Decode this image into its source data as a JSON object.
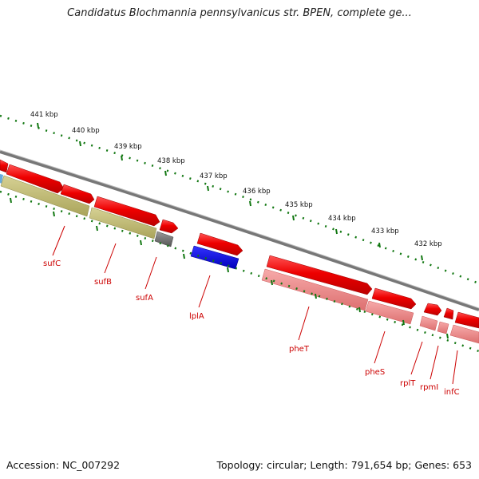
{
  "title": "Candidatus Blochmannia pennsylvanicus str. BPEN, complete ge...",
  "footer": {
    "accession": "Accession: NC_007292",
    "stats": "Topology: circular; Length: 791,654 bp; Genes: 653"
  },
  "scale": {
    "unit": "kbp",
    "ticks": [
      {
        "kbp": 441,
        "label": "441 kbp"
      },
      {
        "kbp": 440,
        "label": "440 kbp"
      },
      {
        "kbp": 439,
        "label": "439 kbp"
      },
      {
        "kbp": 438,
        "label": "438 kbp"
      },
      {
        "kbp": 437,
        "label": "437 kbp"
      },
      {
        "kbp": 436,
        "label": "436 kbp"
      },
      {
        "kbp": 435,
        "label": "435 kbp"
      },
      {
        "kbp": 434,
        "label": "434 kbp"
      },
      {
        "kbp": 433,
        "label": "433 kbp"
      },
      {
        "kbp": 432,
        "label": "432 kbp"
      }
    ]
  },
  "gene_labels": [
    "sufC",
    "sufB",
    "sufA",
    "lplA",
    "pheT",
    "pheS",
    "rplT",
    "rpmI",
    "infC"
  ],
  "colors": {
    "backbone": "#8a8a8a",
    "gene_strand_arrow": "#ee0000",
    "cds_olive": "#bdb870",
    "cds_gray": "#777777",
    "cds_blue": "#0000ee",
    "cds_pink": "#ee8888",
    "cds_lightblue": "#66aadd",
    "tick_green": "#117711",
    "label_red": "#cc0000"
  }
}
